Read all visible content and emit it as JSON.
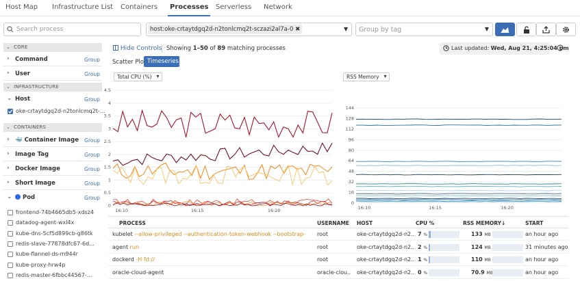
{
  "tabs": [
    "Host Map",
    "Infrastructure List",
    "Containers",
    "Processes",
    "Serverless",
    "Network"
  ],
  "active_tab": "Processes",
  "search": {
    "placeholder": "Search process"
  },
  "filter_tag": "host:oke-crtaytdgq2d-n2tonlcmq2t-sczazi2al7a-0",
  "group_by": {
    "placeholder": "Group by tag"
  },
  "controls": {
    "hide_controls": "Hide Controls",
    "showing_prefix": "Showing ",
    "showing_range": "1–50",
    "showing_of": " of ",
    "showing_total": "89",
    "showing_suffix": " matching processes",
    "last_updated_label": "Last updated: ",
    "last_updated_value": "Wed, Aug 21, 4:25:04 pm"
  },
  "view_buttons": {
    "scatter": "Scatter Plot",
    "timeseries": "Timeseries"
  },
  "sidebar": {
    "sections": {
      "core": "CORE",
      "infrastructure": "INFRASTRUCTURE",
      "containers": "CONTAINERS"
    },
    "group_label": "Group",
    "facets": {
      "command": "Command",
      "user": "User",
      "host": "Host",
      "container_image": "Container Image",
      "image_tag": "Image Tag",
      "docker_image": "Docker Image",
      "short_image": "Short Image",
      "pod": "Pod"
    },
    "host_value": "oke-crtaytdgq2d-n2tonlcmq2t-...",
    "pods": [
      "frontend-74b4665db5-xdsz4",
      "datadog-agent-wxl4x",
      "kube-dns-5cf5d899cb-g86tk",
      "redis-slave-77878dfc67-6d...",
      "kube-flannel-ds-m944r",
      "kube-proxy-hrw4p",
      "redis-master-6fbbc44567-..."
    ]
  },
  "charts": {
    "cpu": {
      "metric": "Total CPU (%)",
      "y_ticks": [
        "4.5",
        "4",
        "3.5",
        "3",
        "2.5",
        "2",
        "1.5",
        "1",
        "0.5",
        "0"
      ],
      "x_ticks": [
        "16:10",
        "16:15",
        "16:20"
      ]
    },
    "rss": {
      "metric": "RSS Memory",
      "y_ticks": [
        "144",
        "128",
        "112",
        "96",
        "80",
        "64",
        "48",
        "32",
        "16",
        "0"
      ],
      "x_ticks": [
        "16:10",
        "16:15",
        "16:20"
      ]
    }
  },
  "chart_data": {
    "type": "line",
    "title": "Total CPU (%)",
    "x": [
      "16:10",
      "16:15",
      "16:20"
    ],
    "ylim": [
      0,
      4.5
    ],
    "grid": true
  },
  "table": {
    "headers": {
      "process": "PROCESS",
      "username": "USERNAME",
      "host": "HOST",
      "cpu": "CPU %",
      "rss": "RSS MEMORY↓",
      "start": "START"
    },
    "rows": [
      {
        "cmd": "kubelet",
        "args": " --allow-privileged --authentication-token-webhook --bootstrap-kube...",
        "user": "root",
        "host": "oke-crtaytdgq2d-n2...",
        "cpu": "7",
        "cpu_frac": 0.07,
        "rss": "133",
        "rss_frac": 0.95,
        "start": "an hour ago"
      },
      {
        "cmd": "agent",
        "args": " run",
        "user": "root",
        "host": "oke-crtaytdgq2d-n2...",
        "cpu": "2",
        "cpu_frac": 0.02,
        "rss": "124",
        "rss_frac": 0.88,
        "start": "31 minutes ago"
      },
      {
        "cmd": "dockerd",
        "args": " -H fd://",
        "user": "root",
        "host": "oke-crtaytdgq2d-n2...",
        "cpu": "1",
        "cpu_frac": 0.01,
        "rss": "110",
        "rss_frac": 0.78,
        "start": "an hour ago"
      },
      {
        "cmd": "oracle-cloud-agent",
        "args": "",
        "user": "oracle-clou...",
        "host": "oke-crtaytdgq2d-n2...",
        "cpu": "0",
        "cpu_frac": 0.0,
        "rss": "70.9",
        "rss_frac": 0.5,
        "start": "an hour ago"
      }
    ],
    "cpu_unit": "%",
    "rss_unit": "MB"
  },
  "colors": {
    "accent": "#3b6eb5",
    "arg_color": "#d98c1a"
  }
}
